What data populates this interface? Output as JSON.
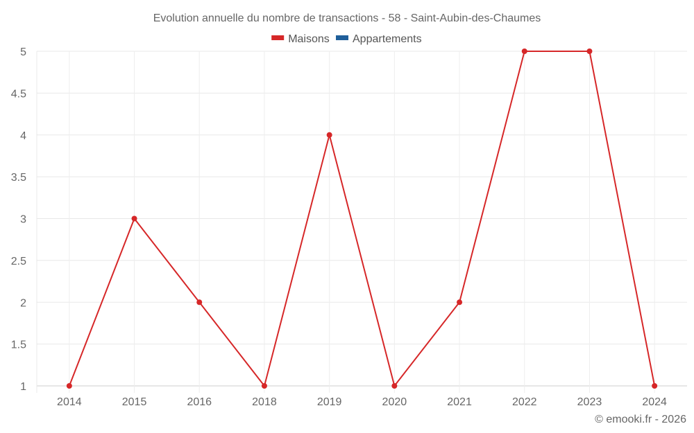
{
  "chart_data": {
    "type": "line",
    "title": "Evolution annuelle du nombre de transactions - 58 - Saint-Aubin-des-Chaumes",
    "xlabel": "",
    "ylabel": "",
    "categories": [
      "2014",
      "2015",
      "2016",
      "2018",
      "2019",
      "2020",
      "2021",
      "2022",
      "2023",
      "2024"
    ],
    "series": [
      {
        "name": "Maisons",
        "color": "#d62728",
        "values": [
          1,
          3,
          2,
          1,
          4,
          1,
          2,
          5,
          5,
          1
        ]
      },
      {
        "name": "Appartements",
        "color": "#1f5f9a",
        "values": []
      }
    ],
    "ylim": [
      1,
      5
    ],
    "yticks": [
      "1",
      "1.5",
      "2",
      "2.5",
      "3",
      "3.5",
      "4",
      "4.5",
      "5"
    ],
    "grid": true,
    "legend_position": "top-center"
  },
  "credit": "© emooki.fr - 2026"
}
